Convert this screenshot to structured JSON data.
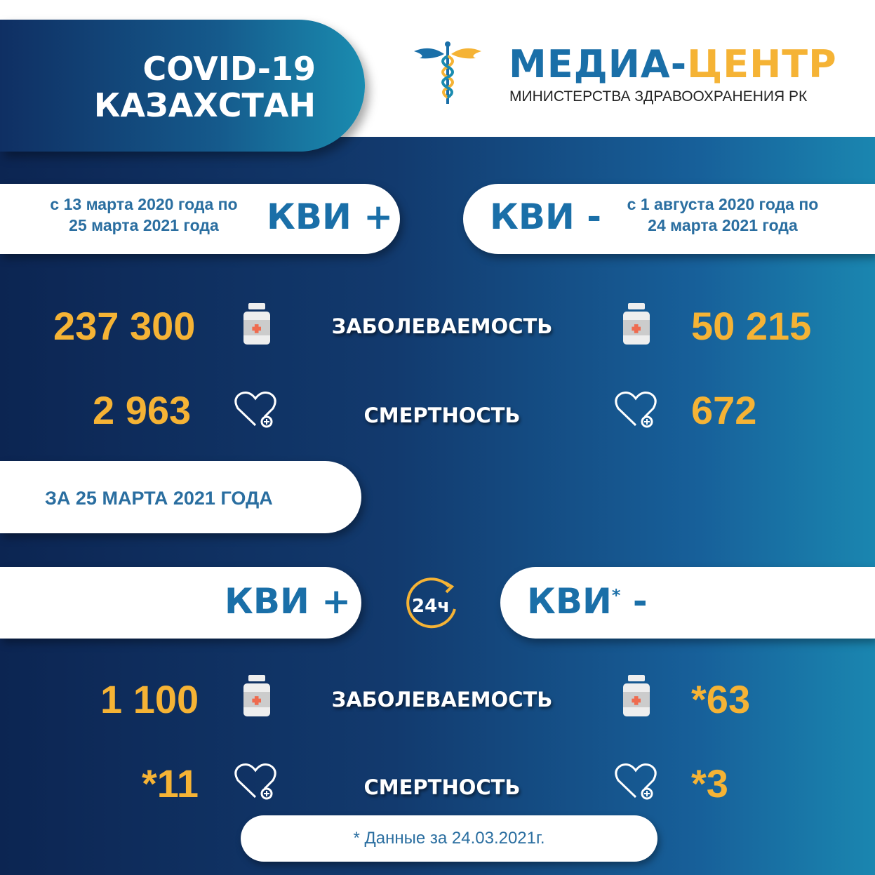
{
  "header": {
    "title_line1": "COVID-19",
    "title_line2": "КАЗАХСТАН",
    "brand_part1": "МЕДИА-",
    "brand_part2": "ЦЕНТР",
    "brand_sub": "МИНИСТЕРСТВА ЗДРАВООХРАНЕНИЯ РК",
    "logo_icon": "caduceus-icon"
  },
  "colors": {
    "accent_orange": "#f5b335",
    "brand_blue": "#1a6fa8",
    "background_dark": "#0c2552"
  },
  "cumulative": {
    "left": {
      "range_line1": "с 13 марта 2020 года по",
      "range_line2": "25 марта 2021 года",
      "label": "КВИ +"
    },
    "right": {
      "label": "КВИ -",
      "range_line1": "с 1 августа 2020 года по",
      "range_line2": "24 марта 2021 года"
    },
    "incidence_label": "ЗАБОЛЕВАЕМОСТЬ",
    "mortality_label": "СМЕРТНОСТЬ",
    "plus_incidence": "237 300",
    "minus_incidence": "50 215",
    "plus_mortality": "2 963",
    "minus_mortality": "672"
  },
  "daily": {
    "date_label": "ЗА 25 МАРТА 2021 ГОДА",
    "plus_label": "КВИ +",
    "minus_label": "КВИ",
    "minus_sign": "-",
    "asterisk": "*",
    "badge": "24ч",
    "incidence_label": "ЗАБОЛЕВАЕМОСТЬ",
    "mortality_label": "СМЕРТНОСТЬ",
    "plus_incidence": "1 100",
    "minus_incidence": "*63",
    "plus_mortality": "*11",
    "minus_mortality": "*3"
  },
  "footnote": "* Данные за 24.03.2021г."
}
